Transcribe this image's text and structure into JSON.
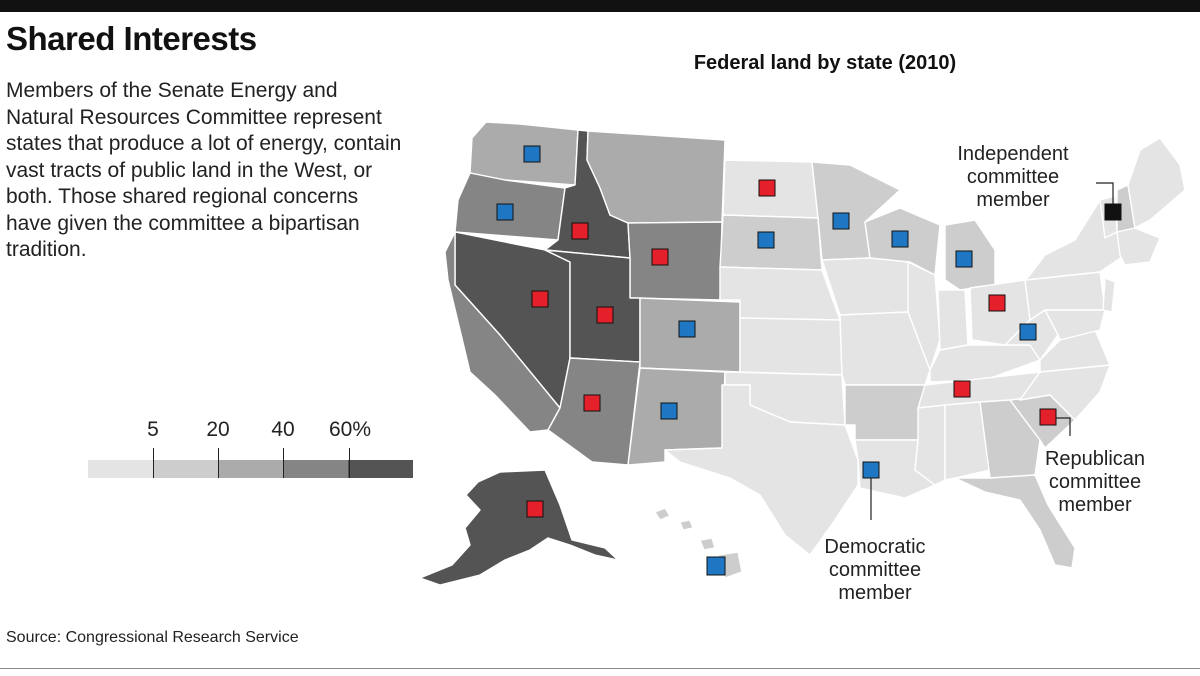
{
  "header": {
    "title": "Shared Interests",
    "dek": "Members of the Senate Energy and Natural Resources Committee represent states that produce a lot of energy, contain vast tracts of public land in the West, or both. Those shared regional concerns have given the committee a bipartisan tradition."
  },
  "map": {
    "title": "Federal land by state (2010)"
  },
  "legend": {
    "ticks": [
      "5",
      "20",
      "40",
      "60%"
    ],
    "colors": [
      "#e4e4e4",
      "#cdcdcd",
      "#ababab",
      "#858585",
      "#545454"
    ]
  },
  "colors": {
    "democratic": "#1f77c4",
    "republican": "#e4202a",
    "independent": "#111111"
  },
  "annotations": {
    "independent": [
      "Independent",
      "committee",
      "member"
    ],
    "republican": [
      "Republican",
      "committee",
      "member"
    ],
    "democratic": [
      "Democratic",
      "committee",
      "member"
    ]
  },
  "source": "Source: Congressional Research Service"
}
